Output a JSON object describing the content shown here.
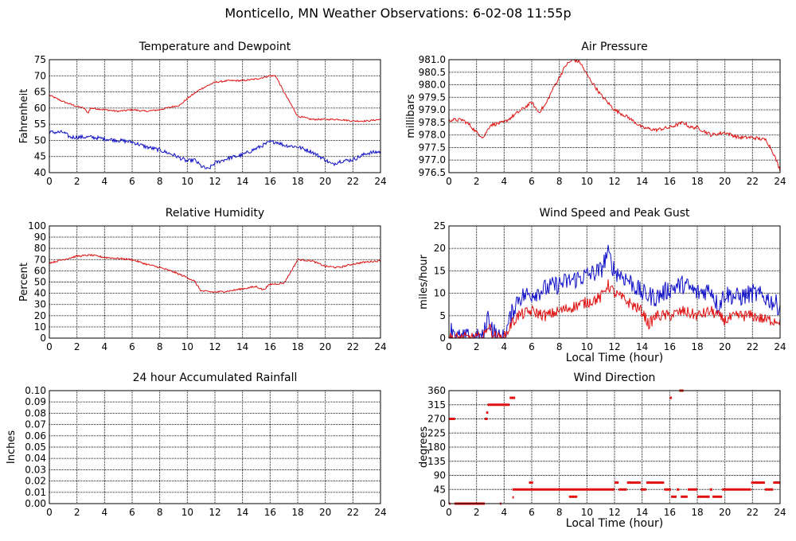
{
  "title": "Monticello, MN Weather Observations: 6-02-08 11:55p",
  "colors": {
    "red": "#e01010",
    "blue": "#1010c8"
  },
  "chart_data": [
    {
      "id": "temperature",
      "type": "line",
      "title": "Temperature and Dewpoint",
      "ylabel": "Fahrenheit",
      "xlabel": "",
      "xlim": [
        0,
        24
      ],
      "ylim": [
        40,
        75
      ],
      "xticks": [
        0,
        2,
        4,
        6,
        8,
        10,
        12,
        14,
        16,
        18,
        20,
        22,
        24
      ],
      "yticks": [
        40,
        45,
        50,
        55,
        60,
        65,
        70,
        75
      ],
      "ytick_labels": [
        "40",
        "45",
        "50",
        "55",
        "60",
        "65",
        "70",
        "75"
      ],
      "grid": true,
      "series": [
        {
          "color": "#e01010",
          "noise": 0.25,
          "x": [
            0,
            1,
            2,
            2.5,
            2.8,
            3,
            4,
            5,
            6,
            7,
            8,
            9,
            9.5,
            10,
            11,
            12,
            13,
            14,
            15,
            15.5,
            16,
            16.4,
            17,
            18,
            19,
            20,
            21,
            22,
            23,
            24
          ],
          "y": [
            64,
            62,
            60.5,
            60,
            58.5,
            60,
            59.5,
            59,
            59.5,
            59,
            59.5,
            60.5,
            61,
            63,
            66,
            68,
            68.5,
            68.5,
            69,
            69.5,
            70,
            70,
            65,
            57.5,
            56.5,
            56.5,
            56.5,
            56,
            56,
            56.5
          ]
        },
        {
          "color": "#1010c8",
          "noise": 0.6,
          "x": [
            0,
            1,
            1.5,
            2,
            3,
            4,
            5,
            6,
            7,
            8,
            9,
            10,
            10.5,
            11,
            11.5,
            12,
            13,
            14,
            15,
            16,
            16.5,
            17,
            18,
            19,
            20,
            20.5,
            21,
            22,
            23,
            24
          ],
          "y": [
            52.5,
            52.5,
            51,
            51,
            51,
            50.5,
            50,
            49.5,
            48,
            47,
            45.5,
            43.5,
            44,
            42,
            41,
            43,
            44.5,
            45.5,
            47.5,
            49.5,
            49.5,
            48.5,
            48,
            46.5,
            44,
            42.5,
            43.5,
            44,
            46,
            46.5
          ]
        }
      ]
    },
    {
      "id": "pressure",
      "type": "line",
      "title": "Air Pressure",
      "ylabel": "millibars",
      "xlabel": "",
      "xlim": [
        0,
        24
      ],
      "ylim": [
        976.5,
        981.0
      ],
      "xticks": [
        0,
        2,
        4,
        6,
        8,
        10,
        12,
        14,
        16,
        18,
        20,
        22,
        24
      ],
      "yticks": [
        976.5,
        977.0,
        977.5,
        978.0,
        978.5,
        979.0,
        979.5,
        980.0,
        980.5,
        981.0
      ],
      "ytick_labels": [
        "976.5",
        "977.0",
        "977.5",
        "978.0",
        "978.5",
        "979.0",
        "979.5",
        "980.0",
        "980.5",
        "981.0"
      ],
      "grid": true,
      "series": [
        {
          "color": "#e01010",
          "noise": 0.07,
          "x": [
            0,
            1,
            1.5,
            2,
            2.5,
            3,
            4,
            5,
            6,
            6.5,
            7,
            7.5,
            8,
            8.5,
            9,
            9.5,
            10,
            11,
            12,
            13,
            14,
            15,
            16,
            17,
            17.5,
            18,
            19,
            20,
            21,
            22,
            23,
            23.5,
            24
          ],
          "y": [
            978.6,
            978.6,
            978.4,
            978.1,
            977.9,
            978.4,
            978.5,
            978.9,
            979.3,
            978.9,
            979.2,
            979.8,
            980.3,
            980.8,
            981.0,
            980.9,
            980.4,
            979.6,
            979.0,
            978.7,
            978.3,
            978.2,
            978.3,
            978.5,
            978.3,
            978.3,
            978.0,
            978.1,
            977.9,
            977.9,
            977.8,
            977.3,
            976.6
          ]
        }
      ]
    },
    {
      "id": "humidity",
      "type": "line",
      "title": "Relative Humidity",
      "ylabel": "Percent",
      "xlabel": "",
      "xlim": [
        0,
        24
      ],
      "ylim": [
        0,
        100
      ],
      "xticks": [
        0,
        2,
        4,
        6,
        8,
        10,
        12,
        14,
        16,
        18,
        20,
        22,
        24
      ],
      "yticks": [
        0,
        10,
        20,
        30,
        40,
        50,
        60,
        70,
        80,
        90,
        100
      ],
      "ytick_labels": [
        "0",
        "10",
        "20",
        "30",
        "40",
        "50",
        "60",
        "70",
        "80",
        "90",
        "100"
      ],
      "grid": true,
      "series": [
        {
          "color": "#e01010",
          "noise": 0.8,
          "x": [
            0,
            1,
            2,
            3,
            4,
            5,
            6,
            7,
            8,
            9,
            10,
            10.5,
            11,
            12,
            13,
            14,
            15,
            15.5,
            16,
            17,
            17.5,
            18,
            19,
            20,
            21,
            22,
            23,
            24
          ],
          "y": [
            67,
            70,
            73,
            74,
            72,
            71,
            70,
            66,
            63,
            59,
            54,
            51,
            42,
            41,
            42,
            44,
            46,
            43,
            48,
            49,
            59,
            70,
            69,
            64,
            63,
            66,
            68,
            69
          ]
        }
      ]
    },
    {
      "id": "wind-speed",
      "type": "line",
      "title": "Wind Speed and Peak Gust",
      "ylabel": "miles/hour",
      "xlabel": "Local Time (hour)",
      "xlim": [
        0,
        24
      ],
      "ylim": [
        0,
        25
      ],
      "xticks": [
        0,
        2,
        4,
        6,
        8,
        10,
        12,
        14,
        16,
        18,
        20,
        22,
        24
      ],
      "yticks": [
        0,
        5,
        10,
        15,
        20,
        25
      ],
      "ytick_labels": [
        "0",
        "5",
        "10",
        "15",
        "20",
        "25"
      ],
      "grid": true,
      "series": [
        {
          "color": "#1010c8",
          "noise": 2.2,
          "x": [
            0,
            0.2,
            0.4,
            0.5,
            0.6,
            2.5,
            2.8,
            3.2,
            3.5,
            4,
            4.5,
            5,
            6,
            7,
            8,
            9,
            10,
            11,
            11.5,
            12,
            13,
            14,
            15,
            16,
            17,
            18,
            19,
            19.5,
            20,
            21,
            22,
            23,
            24
          ],
          "y": [
            0,
            2,
            2,
            0,
            0,
            0,
            5,
            2,
            0,
            0,
            5,
            9,
            10,
            11,
            12,
            13,
            14,
            15,
            19,
            15,
            13,
            10,
            9,
            11,
            12,
            10,
            11,
            7,
            10,
            9,
            10,
            9,
            7
          ]
        },
        {
          "color": "#e01010",
          "noise": 1.3,
          "x": [
            0,
            2.5,
            2.8,
            3.2,
            3.5,
            4,
            4.5,
            5,
            6,
            7,
            8,
            9,
            10,
            11,
            11.5,
            12,
            13,
            14,
            14.5,
            15,
            16,
            17,
            18,
            19,
            20,
            21,
            22,
            23,
            24
          ],
          "y": [
            0,
            0,
            3,
            1,
            0,
            0,
            3,
            5,
            6,
            5,
            6,
            7,
            8,
            9,
            12,
            10,
            8,
            6,
            3,
            5,
            5,
            6,
            5,
            6,
            4,
            5,
            5,
            4,
            4
          ]
        }
      ]
    },
    {
      "id": "rainfall",
      "type": "line",
      "title": "24 hour Accumulated Rainfall",
      "ylabel": "Inches",
      "xlabel": "",
      "xlim": [
        0,
        24
      ],
      "ylim": [
        0,
        0.1
      ],
      "xticks": [
        0,
        2,
        4,
        6,
        8,
        10,
        12,
        14,
        16,
        18,
        20,
        22,
        24
      ],
      "yticks": [
        0,
        0.01,
        0.02,
        0.03,
        0.04,
        0.05,
        0.06,
        0.07,
        0.08,
        0.09,
        0.1
      ],
      "ytick_labels": [
        "0.00",
        "0.01",
        "0.02",
        "0.03",
        "0.04",
        "0.05",
        "0.06",
        "0.07",
        "0.08",
        "0.09",
        "0.10"
      ],
      "grid": true,
      "series": [
        {
          "color": "#e01010",
          "noise": 0,
          "x": [
            0,
            24
          ],
          "y": [
            0,
            0
          ]
        }
      ]
    },
    {
      "id": "wind-direction",
      "type": "scatter",
      "title": "Wind Direction",
      "ylabel": "degrees",
      "xlabel": "Local Time (hour)",
      "xlim": [
        0,
        24
      ],
      "ylim": [
        0,
        360
      ],
      "xticks": [
        0,
        2,
        4,
        6,
        8,
        10,
        12,
        14,
        16,
        18,
        20,
        22,
        24
      ],
      "yticks": [
        0,
        45,
        90,
        135,
        180,
        225,
        270,
        315,
        360
      ],
      "ytick_labels": [
        "0",
        "45",
        "90",
        "135",
        "180",
        "225",
        "270",
        "315",
        "360"
      ],
      "grid": true,
      "segments": [
        {
          "x0": 0.0,
          "x1": 0.45,
          "y": 270
        },
        {
          "x0": 0.0,
          "x1": 0.1,
          "y": 0
        },
        {
          "x0": 0.4,
          "x1": 2.6,
          "y": 0
        },
        {
          "x0": 2.6,
          "x1": 2.8,
          "y": 270
        },
        {
          "x0": 2.7,
          "x1": 2.85,
          "y": 290
        },
        {
          "x0": 2.8,
          "x1": 4.4,
          "y": 315
        },
        {
          "x0": 3.7,
          "x1": 3.8,
          "y": 0
        },
        {
          "x0": 4.4,
          "x1": 4.8,
          "y": 337
        },
        {
          "x0": 4.6,
          "x1": 4.7,
          "y": 20
        },
        {
          "x0": 4.6,
          "x1": 5.9,
          "y": 45
        },
        {
          "x0": 5.8,
          "x1": 6.1,
          "y": 67
        },
        {
          "x0": 5.9,
          "x1": 8.6,
          "y": 45
        },
        {
          "x0": 8.7,
          "x1": 9.3,
          "y": 22
        },
        {
          "x0": 8.6,
          "x1": 12.0,
          "y": 45
        },
        {
          "x0": 12.0,
          "x1": 12.3,
          "y": 67
        },
        {
          "x0": 12.3,
          "x1": 12.9,
          "y": 45
        },
        {
          "x0": 12.9,
          "x1": 13.9,
          "y": 67
        },
        {
          "x0": 13.9,
          "x1": 14.3,
          "y": 45
        },
        {
          "x0": 14.3,
          "x1": 15.6,
          "y": 67
        },
        {
          "x0": 15.6,
          "x1": 16.1,
          "y": 45
        },
        {
          "x0": 16.0,
          "x1": 16.15,
          "y": 337
        },
        {
          "x0": 16.1,
          "x1": 16.5,
          "y": 22
        },
        {
          "x0": 16.5,
          "x1": 16.7,
          "y": 45
        },
        {
          "x0": 16.7,
          "x1": 17.0,
          "y": 360
        },
        {
          "x0": 16.8,
          "x1": 17.3,
          "y": 22
        },
        {
          "x0": 17.3,
          "x1": 18.0,
          "y": 45
        },
        {
          "x0": 18.0,
          "x1": 18.9,
          "y": 22
        },
        {
          "x0": 18.9,
          "x1": 19.1,
          "y": 45
        },
        {
          "x0": 19.1,
          "x1": 19.8,
          "y": 22
        },
        {
          "x0": 19.8,
          "x1": 21.9,
          "y": 45
        },
        {
          "x0": 21.9,
          "x1": 22.9,
          "y": 67
        },
        {
          "x0": 22.9,
          "x1": 23.5,
          "y": 45
        },
        {
          "x0": 23.5,
          "x1": 24.0,
          "y": 67
        }
      ]
    }
  ]
}
